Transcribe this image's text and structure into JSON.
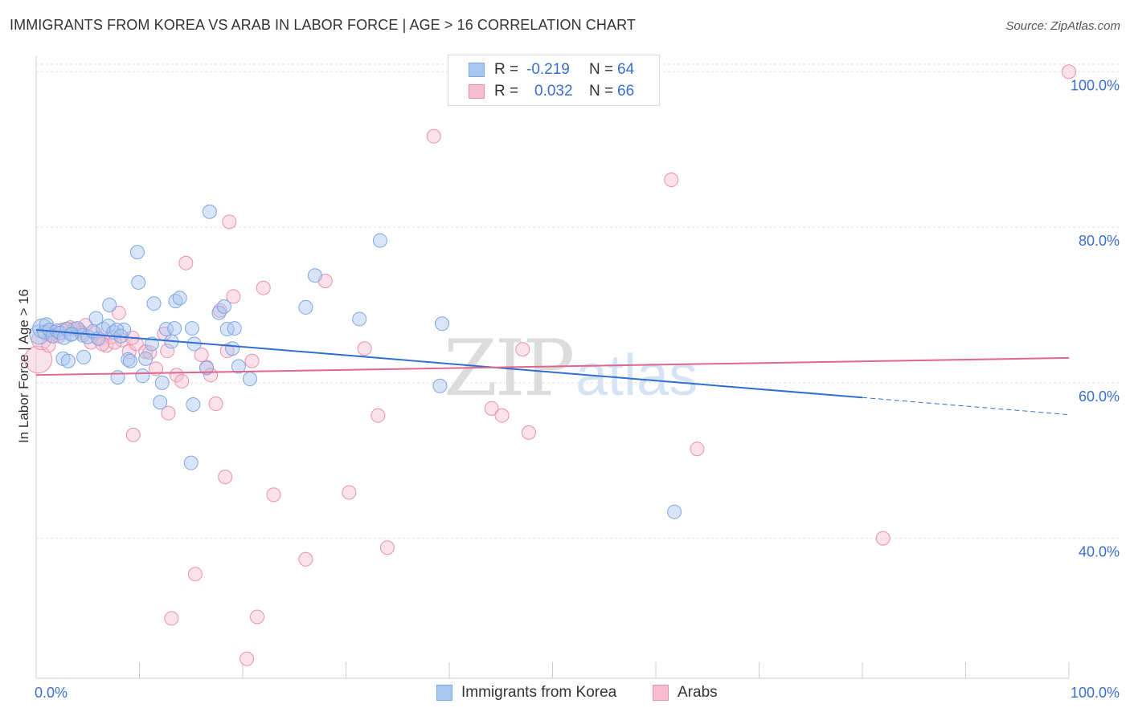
{
  "title": "IMMIGRANTS FROM KOREA VS ARAB IN LABOR FORCE | AGE > 16 CORRELATION CHART",
  "source": "Source: ZipAtlas.com",
  "watermark": {
    "zip": "ZIP",
    "atlas": "atlas"
  },
  "legend": {
    "rows": [
      {
        "r_label": "R =",
        "r_value": "-0.219",
        "n_label": "N =",
        "n_value": "64",
        "color": "#a9c6f0",
        "border": "#7ea6e0"
      },
      {
        "r_label": "R =",
        "r_value": "0.032",
        "n_label": "N =",
        "n_value": "66",
        "color": "#f7bcd0",
        "border": "#e98fb0"
      }
    ]
  },
  "bottom_legend": [
    "Immigrants from Korea",
    "Arabs"
  ],
  "chart_data": {
    "type": "scatter",
    "title": "IMMIGRANTS FROM KOREA VS ARAB IN LABOR FORCE | AGE > 16 CORRELATION CHART",
    "xlabel": "",
    "ylabel": "In Labor Force | Age > 16",
    "xlim": [
      0,
      100
    ],
    "ylim": [
      22,
      102
    ],
    "x_tick_labels": [
      "0.0%",
      "100.0%"
    ],
    "y_ticks": [
      40,
      60,
      80,
      100
    ],
    "y_tick_labels": [
      "40.0%",
      "60.0%",
      "80.0%",
      "100.0%"
    ],
    "grid": true,
    "series": [
      {
        "name": "Immigrants from Korea",
        "color": "#a9c6f0",
        "stroke": "#7ea6e0",
        "line_color": "#2f6fd1",
        "trend": {
          "x0": 0,
          "y0": 66.8,
          "x1": 80,
          "y1": 58.1,
          "dash_to_x": 100,
          "dash_to_y": 55.9
        },
        "points": [
          [
            0.3,
            66.2
          ],
          [
            0.6,
            67.0
          ],
          [
            0.8,
            66.5
          ],
          [
            1.0,
            67.5
          ],
          [
            1.3,
            66.8
          ],
          [
            1.6,
            66.0
          ],
          [
            2.0,
            66.7
          ],
          [
            2.3,
            66.4
          ],
          [
            2.7,
            65.8
          ],
          [
            3.0,
            66.9
          ],
          [
            3.5,
            66.3
          ],
          [
            4.0,
            67.0
          ],
          [
            4.5,
            66.1
          ],
          [
            5.0,
            65.9
          ],
          [
            5.5,
            66.6
          ],
          [
            6.0,
            65.7
          ],
          [
            6.5,
            66.9
          ],
          [
            7.0,
            67.3
          ],
          [
            7.5,
            66.5
          ],
          [
            8.5,
            66.8
          ],
          [
            2.6,
            63.1
          ],
          [
            3.1,
            62.8
          ],
          [
            3.4,
            66.2
          ],
          [
            4.6,
            63.3
          ],
          [
            5.8,
            68.3
          ],
          [
            7.1,
            70.0
          ],
          [
            7.8,
            66.8
          ],
          [
            8.2,
            66.0
          ],
          [
            8.9,
            63.0
          ],
          [
            9.1,
            62.8
          ],
          [
            9.8,
            76.8
          ],
          [
            9.9,
            72.9
          ],
          [
            10.3,
            60.9
          ],
          [
            10.6,
            63.1
          ],
          [
            11.2,
            65.0
          ],
          [
            11.4,
            70.2
          ],
          [
            12.0,
            57.5
          ],
          [
            12.2,
            60.0
          ],
          [
            12.6,
            66.9
          ],
          [
            13.1,
            65.3
          ],
          [
            13.4,
            67.0
          ],
          [
            13.5,
            70.5
          ],
          [
            13.9,
            70.9
          ],
          [
            15.2,
            57.2
          ],
          [
            15.3,
            65.0
          ],
          [
            15.1,
            67.0
          ],
          [
            16.5,
            61.9
          ],
          [
            16.8,
            82.0
          ],
          [
            17.7,
            69.0
          ],
          [
            18.2,
            69.8
          ],
          [
            18.5,
            66.9
          ],
          [
            19.2,
            67.0
          ],
          [
            19.0,
            64.4
          ],
          [
            19.6,
            62.1
          ],
          [
            20.7,
            60.5
          ],
          [
            26.1,
            69.7
          ],
          [
            27.0,
            73.8
          ],
          [
            31.3,
            68.2
          ],
          [
            33.3,
            78.3
          ],
          [
            39.1,
            59.6
          ],
          [
            39.3,
            67.6
          ],
          [
            61.8,
            43.4
          ],
          [
            15.0,
            49.7
          ],
          [
            7.9,
            60.7
          ]
        ]
      },
      {
        "name": "Arabs",
        "color": "#f7bcd0",
        "stroke": "#e98fb0",
        "line_color": "#e0658f",
        "trend": {
          "x0": 0,
          "y0": 61.0,
          "x1": 100,
          "y1": 63.2
        },
        "points": [
          [
            0.2,
            63.0
          ],
          [
            0.5,
            65.5
          ],
          [
            1.2,
            64.8
          ],
          [
            1.8,
            66.5
          ],
          [
            2.2,
            66.0
          ],
          [
            2.9,
            66.9
          ],
          [
            3.3,
            67.1
          ],
          [
            4.2,
            66.7
          ],
          [
            4.8,
            67.4
          ],
          [
            5.3,
            65.2
          ],
          [
            5.7,
            66.4
          ],
          [
            6.2,
            65.6
          ],
          [
            6.8,
            64.8
          ],
          [
            7.3,
            65.9
          ],
          [
            8.0,
            69.0
          ],
          [
            8.3,
            65.5
          ],
          [
            9.0,
            64.0
          ],
          [
            9.7,
            65.0
          ],
          [
            10.6,
            64.0
          ],
          [
            11.6,
            61.8
          ],
          [
            12.4,
            66.3
          ],
          [
            12.7,
            64.1
          ],
          [
            13.6,
            61.0
          ],
          [
            14.1,
            60.2
          ],
          [
            12.8,
            56.1
          ],
          [
            14.5,
            75.4
          ],
          [
            16.0,
            63.6
          ],
          [
            16.5,
            62.0
          ],
          [
            16.9,
            61.0
          ],
          [
            17.4,
            57.3
          ],
          [
            17.8,
            69.3
          ],
          [
            18.7,
            80.7
          ],
          [
            19.1,
            71.1
          ],
          [
            18.5,
            64.1
          ],
          [
            20.9,
            62.8
          ],
          [
            22.0,
            72.2
          ],
          [
            23.0,
            45.6
          ],
          [
            26.1,
            37.3
          ],
          [
            28.0,
            73.1
          ],
          [
            30.3,
            45.9
          ],
          [
            31.8,
            64.4
          ],
          [
            33.1,
            55.8
          ],
          [
            34.0,
            38.8
          ],
          [
            38.5,
            91.7
          ],
          [
            44.1,
            56.7
          ],
          [
            45.1,
            55.8
          ],
          [
            47.1,
            64.3
          ],
          [
            47.7,
            53.6
          ],
          [
            61.5,
            86.1
          ],
          [
            64.0,
            51.5
          ],
          [
            82.0,
            40.0
          ],
          [
            100.0,
            100.0
          ],
          [
            9.4,
            53.3
          ],
          [
            18.3,
            47.9
          ],
          [
            15.4,
            35.4
          ],
          [
            13.1,
            29.7
          ],
          [
            21.4,
            29.9
          ],
          [
            20.4,
            24.5
          ],
          [
            1.4,
            66.2
          ],
          [
            2.5,
            66.8
          ],
          [
            3.7,
            66.9
          ],
          [
            4.4,
            66.4
          ],
          [
            6.4,
            65.0
          ],
          [
            7.6,
            65.2
          ],
          [
            9.3,
            65.8
          ],
          [
            11.0,
            63.9
          ]
        ]
      }
    ]
  }
}
